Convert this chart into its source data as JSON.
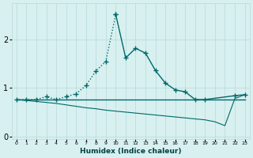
{
  "xlabel": "Humidex (Indice chaleur)",
  "x": [
    0,
    1,
    2,
    3,
    4,
    5,
    6,
    7,
    8,
    9,
    10,
    11,
    12,
    13,
    14,
    15,
    16,
    17,
    18,
    19,
    20,
    21,
    22,
    23
  ],
  "line1_dotted_x": [
    0,
    1,
    2,
    3,
    4,
    5,
    6,
    7,
    8,
    9,
    10
  ],
  "line1_dotted_y": [
    0.76,
    0.76,
    0.76,
    0.82,
    0.76,
    0.82,
    0.88,
    1.05,
    1.35,
    1.55,
    2.52
  ],
  "line1_solid_x": [
    10,
    11,
    12,
    13,
    14,
    15,
    16,
    17,
    18,
    19,
    22,
    23
  ],
  "line1_solid_y": [
    2.52,
    1.62,
    1.82,
    1.72,
    1.36,
    1.1,
    0.96,
    0.92,
    0.76,
    0.76,
    0.84,
    0.86
  ],
  "line2_y": [
    0.76,
    0.76,
    0.76,
    0.76,
    0.76,
    0.76,
    0.76,
    0.76,
    0.76,
    0.76,
    0.76,
    0.76,
    0.76,
    0.76,
    0.76,
    0.76,
    0.76,
    0.76,
    0.76,
    0.76,
    0.76,
    0.76,
    0.76,
    0.76
  ],
  "line3_x": [
    0,
    1,
    2,
    3,
    4,
    5,
    6,
    7,
    8,
    9,
    10,
    11,
    12,
    13,
    14,
    15,
    16,
    17,
    18,
    19,
    20,
    21,
    22,
    23
  ],
  "line3_y": [
    0.76,
    0.74,
    0.72,
    0.7,
    0.68,
    0.65,
    0.62,
    0.59,
    0.57,
    0.54,
    0.52,
    0.5,
    0.48,
    0.46,
    0.44,
    0.42,
    0.4,
    0.38,
    0.36,
    0.34,
    0.3,
    0.22,
    0.78,
    0.86
  ],
  "markers_x": [
    0,
    1,
    3,
    6,
    7,
    8,
    9,
    11,
    12,
    13,
    14,
    15,
    16,
    17,
    18,
    19,
    22,
    23
  ],
  "markers_y": [
    0.76,
    0.76,
    0.82,
    0.88,
    1.05,
    1.35,
    1.55,
    1.62,
    1.82,
    1.72,
    1.36,
    1.1,
    0.96,
    0.92,
    0.76,
    0.76,
    0.84,
    0.86
  ],
  "bg_color": "#d8f0f0",
  "grid_color": "#b8d8d8",
  "line_color": "#006868",
  "ylim": [
    -0.05,
    2.75
  ],
  "xlim": [
    -0.5,
    23.5
  ],
  "yticks": [
    0,
    1,
    2
  ],
  "xticks": [
    0,
    1,
    2,
    3,
    4,
    5,
    6,
    7,
    8,
    9,
    10,
    11,
    12,
    13,
    14,
    15,
    16,
    17,
    18,
    19,
    20,
    21,
    22,
    23
  ]
}
